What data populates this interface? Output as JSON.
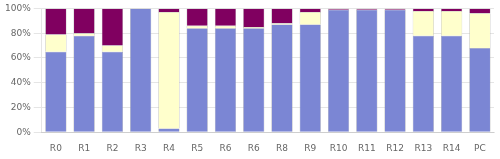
{
  "chart_data": {
    "type": "bar",
    "stacked": true,
    "grid": true,
    "categories": [
      "R0",
      "R1",
      "R2",
      "R3",
      "R4",
      "R5",
      "R6",
      "R6",
      "R8",
      "R9",
      "R10",
      "R11",
      "R12",
      "R13",
      "R14",
      "PC"
    ],
    "series": [
      {
        "color": "#7b86d4",
        "values": [
          65,
          78,
          65,
          100,
          3,
          84,
          84,
          84,
          87,
          87,
          99,
          99,
          99,
          78,
          78,
          68
        ]
      },
      {
        "color": "#ffffcc",
        "values": [
          14,
          2,
          5,
          0,
          94,
          2,
          2,
          1,
          1,
          10,
          0,
          0,
          0,
          20,
          20,
          28
        ]
      },
      {
        "color": "#800060",
        "values": [
          21,
          20,
          30,
          0,
          3,
          14,
          14,
          15,
          12,
          3,
          1,
          1,
          1,
          2,
          2,
          4
        ]
      }
    ],
    "ylim": [
      0,
      100
    ],
    "yticks": [
      {
        "value": 0,
        "label": "0%"
      },
      {
        "value": 20,
        "label": "20%"
      },
      {
        "value": 40,
        "label": "40%"
      },
      {
        "value": 60,
        "label": "60%"
      },
      {
        "value": 80,
        "label": "80%"
      },
      {
        "value": 100,
        "label": "100%"
      }
    ]
  }
}
